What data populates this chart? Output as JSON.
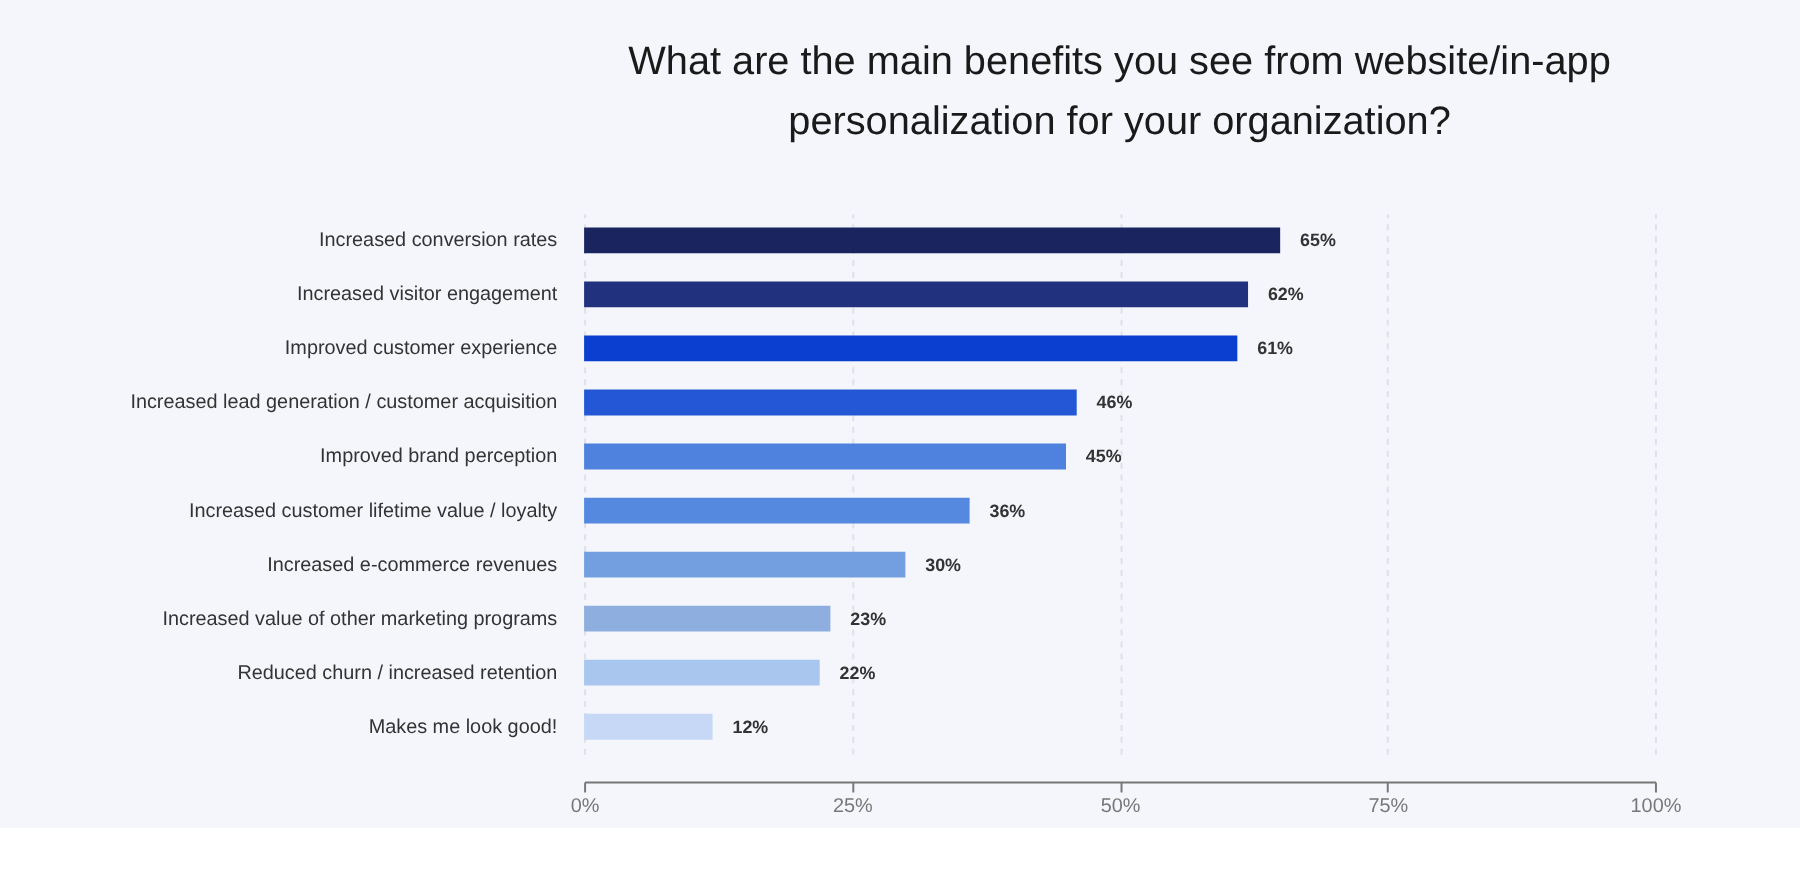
{
  "chart_data": {
    "type": "bar",
    "orientation": "horizontal",
    "title": "What are the main benefits you see from website/in-app personalization for your organization?",
    "categories": [
      "Increased conversion rates",
      "Increased visitor engagement",
      "Improved customer experience",
      "Increased lead generation / customer acquisition",
      "Improved brand perception",
      "Increased customer lifetime value / loyalty",
      "Increased e-commerce revenues",
      "Increased value of other marketing programs",
      "Reduced churn / increased retention",
      "Makes me look good!"
    ],
    "values": [
      65,
      62,
      61,
      46,
      45,
      36,
      30,
      23,
      22,
      12
    ],
    "value_labels": [
      "65%",
      "62%",
      "61%",
      "46%",
      "45%",
      "36%",
      "30%",
      "23%",
      "22%",
      "12%"
    ],
    "colors": [
      "#1a2560",
      "#22317d",
      "#0a3fcf",
      "#2457d6",
      "#4f82de",
      "#5588df",
      "#739fe0",
      "#8eaedf",
      "#a9c6ef",
      "#c6d8f5"
    ],
    "xlim": [
      0,
      100
    ],
    "xticks": [
      {
        "value": 0,
        "label": "0%"
      },
      {
        "value": 25,
        "label": "25%"
      },
      {
        "value": 50,
        "label": "50%"
      },
      {
        "value": 75,
        "label": "75%"
      },
      {
        "value": 100,
        "label": "100%"
      }
    ],
    "grid": "x"
  }
}
